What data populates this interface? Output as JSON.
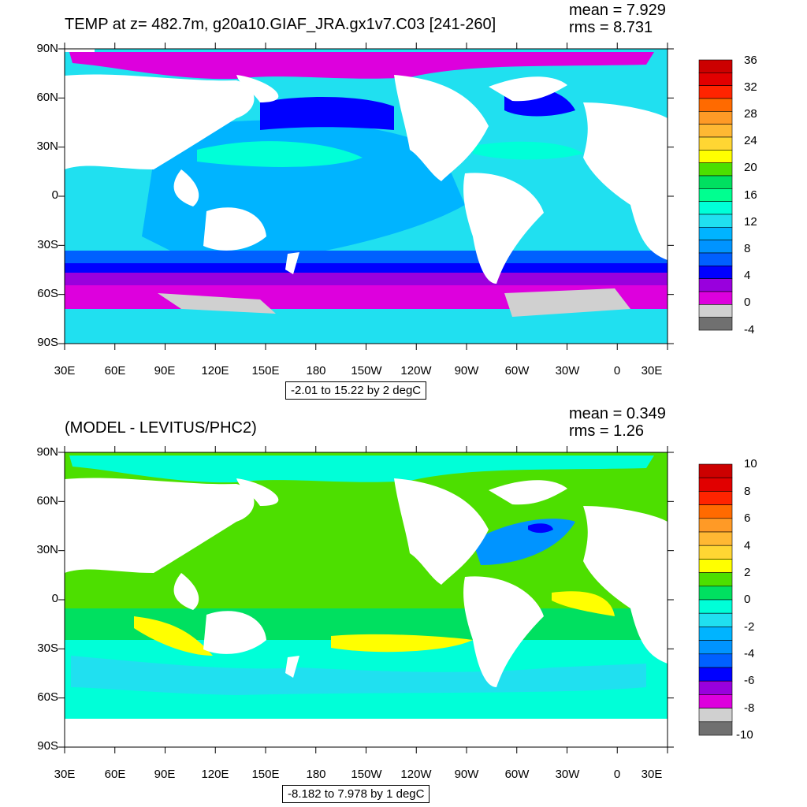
{
  "chart_data": [
    {
      "type": "heatmap",
      "title": "TEMP at z= 482.7m, g20a10.GIAF_JRA.gx1v7.C03 [241-260]",
      "stats": {
        "mean": "mean = 7.929",
        "rms": "rms = 8.731"
      },
      "range_text": "-2.01 to 15.22 by 2 degC",
      "lat_labels": [
        "90N",
        "60N",
        "30N",
        "0",
        "30S",
        "60S",
        "90S"
      ],
      "lon_labels": [
        "30E",
        "60E",
        "90E",
        "120E",
        "150E",
        "180",
        "150W",
        "120W",
        "90W",
        "60W",
        "30W",
        "0",
        "30E"
      ],
      "colorbar": {
        "labels": [
          "36",
          "32",
          "28",
          "24",
          "20",
          "16",
          "12",
          "8",
          "4",
          "0",
          "-4"
        ],
        "colors": [
          "#cc0000",
          "#e10000",
          "#ff2400",
          "#ff6a00",
          "#ff9a26",
          "#ffb833",
          "#ffd633",
          "#ffff00",
          "#4ddf00",
          "#00e060",
          "#00ff90",
          "#00ffd8",
          "#20e0f0",
          "#00b4ff",
          "#0094ff",
          "#0060ff",
          "#0000ff",
          "#9900dd",
          "#dd00dd",
          "#d0d0d0",
          "#707070"
        ]
      },
      "regions": {
        "arctic": "#dd00dd",
        "north_pacific": "#0000ff",
        "subtropics": "#00b4ff",
        "tropics": "#20e0f0",
        "warm_core": "#00ffd8",
        "southern_band": "#0060ff",
        "acc": "#9900dd",
        "antarctic": "#dd00dd",
        "ice_shelf": "#d0d0d0"
      }
    },
    {
      "type": "heatmap",
      "title": "(MODEL - LEVITUS/PHC2)",
      "stats": {
        "mean": "mean = 0.349",
        "rms": "rms = 1.26"
      },
      "range_text": "-8.182 to 7.978 by 1 degC",
      "lat_labels": [
        "90N",
        "60N",
        "30N",
        "0",
        "30S",
        "60S",
        "90S"
      ],
      "lon_labels": [
        "30E",
        "60E",
        "90E",
        "120E",
        "150E",
        "180",
        "150W",
        "120W",
        "90W",
        "60W",
        "30W",
        "0",
        "30E"
      ],
      "colorbar": {
        "labels": [
          "10",
          "8",
          "6",
          "4",
          "2",
          "0",
          "-2",
          "-4",
          "-6",
          "-8",
          "-10"
        ],
        "colors": [
          "#cc0000",
          "#e10000",
          "#ff2400",
          "#ff6a00",
          "#ff9a26",
          "#ffb833",
          "#ffd633",
          "#ffff00",
          "#4ddf00",
          "#00e060",
          "#00ffd8",
          "#20e0f0",
          "#00b4ff",
          "#0094ff",
          "#0060ff",
          "#0000ff",
          "#9900dd",
          "#dd00dd",
          "#d0d0d0",
          "#707070"
        ]
      },
      "regions": {
        "base": "#4ddf00",
        "arctic": "#00ffd8",
        "southern": "#00ffd8",
        "southern_cool": "#20e0f0",
        "warm_patch": "#ffff00",
        "north_atlantic_cool": "#0094ff",
        "north_atlantic_core": "#0000ff",
        "near_zero": "#00e060"
      }
    }
  ]
}
